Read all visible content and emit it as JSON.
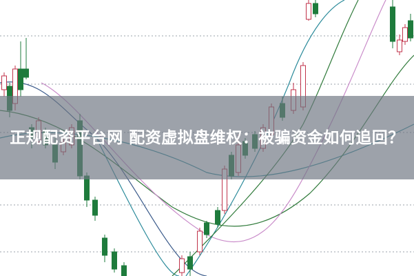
{
  "headline": "正规配资平台网 配资虚拟盘维权：被骗资金如何追回？",
  "chart_data": {
    "type": "candlestick",
    "title": "",
    "grid": "horizontal dotted",
    "colors": {
      "up": "#c0324a",
      "down": "#1e7b3c",
      "ma_teal": "#2a8a9a",
      "ma_blue": "#3a5a8a",
      "ma_green": "#2f7a3a",
      "ma_pink": "#c98bc9",
      "grid": "#9aa0a8"
    }
  }
}
